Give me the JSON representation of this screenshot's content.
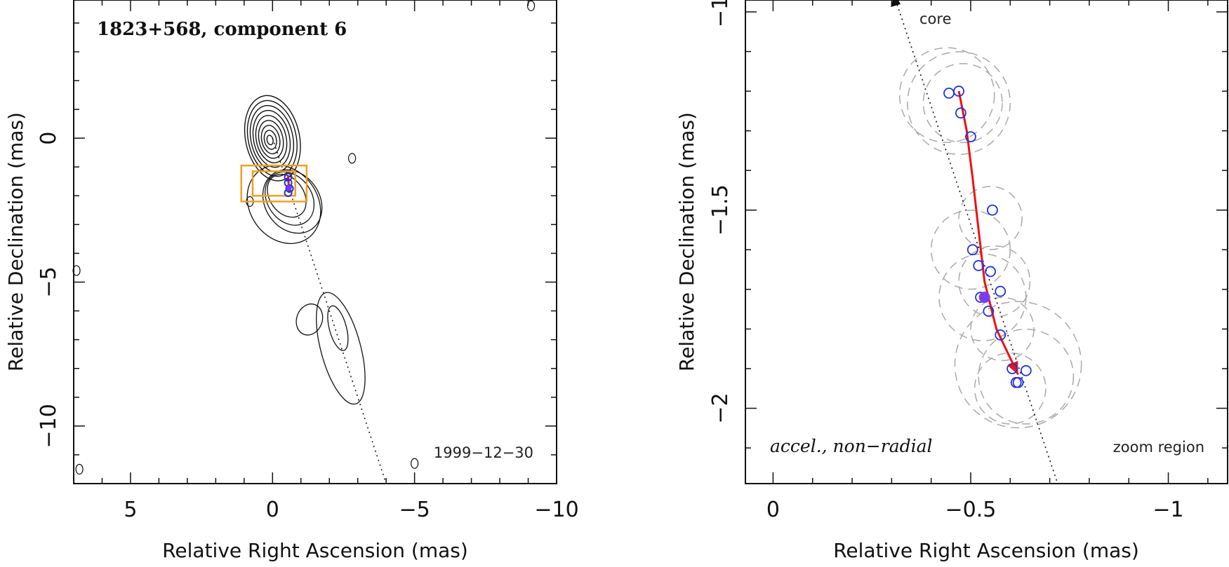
{
  "chart_data": [
    {
      "type": "contour",
      "panel": "left",
      "title": "1823+568, component 6",
      "date": "1999−12−30",
      "xlabel": "Relative Right Ascension (mas)",
      "ylabel": "Relative Declination (mas)",
      "xlim": [
        7,
        -10
      ],
      "ylim": [
        -12,
        4.8
      ],
      "xticks": [
        5,
        0,
        -5,
        -10
      ],
      "xtick_labels": [
        "5",
        "0",
        "−5",
        "−10"
      ],
      "yticks": [
        0,
        -5,
        -10
      ],
      "ytick_labels": [
        "0",
        "−5",
        "−10"
      ],
      "core_contours": {
        "center": [
          0,
          0
        ],
        "levels": 9,
        "max_radius": [
          0.95,
          1.5
        ]
      },
      "jet_direction_line": [
        [
          0,
          0
        ],
        [
          -4.0,
          -12
        ]
      ],
      "component_positions": [
        [
          -0.55,
          -1.35
        ],
        [
          -0.55,
          -1.55
        ],
        [
          -0.6,
          -1.75
        ],
        [
          -0.55,
          -1.9
        ]
      ],
      "component_color": "#2233dd",
      "zoom_boxes": [
        {
          "x": [
            1.1,
            -1.2
          ],
          "y": [
            -0.95,
            -2.2
          ]
        },
        {
          "x": [
            0.7,
            -0.8
          ],
          "y": [
            -1.15,
            -2.0
          ]
        }
      ],
      "zoom_box_color": "#f0a020"
    },
    {
      "type": "scatter",
      "panel": "right",
      "annotation_left": "accel., non−radial",
      "annotation_right": "zoom region",
      "core_label": "core",
      "xlabel": "Relative Right Ascension (mas)",
      "ylabel": "Relative Declination (mas)",
      "xlim": [
        0.07,
        -1.15
      ],
      "ylim": [
        -2.19,
        -0.97
      ],
      "xticks": [
        0,
        -0.5,
        -1
      ],
      "xtick_labels": [
        "0",
        "−0.5",
        "−1"
      ],
      "yticks": [
        -1,
        -1.5,
        -2
      ],
      "ytick_labels": [
        "−1",
        "−1.5",
        "−2"
      ],
      "points": [
        {
          "x": -0.445,
          "y": -1.205
        },
        {
          "x": -0.47,
          "y": -1.2
        },
        {
          "x": -0.475,
          "y": -1.255
        },
        {
          "x": -0.5,
          "y": -1.315
        },
        {
          "x": -0.555,
          "y": -1.5
        },
        {
          "x": -0.505,
          "y": -1.6
        },
        {
          "x": -0.52,
          "y": -1.64
        },
        {
          "x": -0.55,
          "y": -1.655
        },
        {
          "x": -0.575,
          "y": -1.705
        },
        {
          "x": -0.525,
          "y": -1.72
        },
        {
          "x": -0.545,
          "y": -1.755
        },
        {
          "x": -0.575,
          "y": -1.815
        },
        {
          "x": -0.605,
          "y": -1.9
        },
        {
          "x": -0.64,
          "y": -1.905
        },
        {
          "x": -0.615,
          "y": -1.935
        },
        {
          "x": -0.62,
          "y": -1.935
        }
      ],
      "filled_point": {
        "x": -0.535,
        "y": -1.72
      },
      "point_color": "#2233dd",
      "filled_color": "#7a3cf0",
      "track_color": "#ee1111",
      "track": [
        [
          -0.47,
          -1.2
        ],
        [
          -0.49,
          -1.3
        ],
        [
          -0.505,
          -1.42
        ],
        [
          -0.52,
          -1.55
        ],
        [
          -0.535,
          -1.68
        ],
        [
          -0.565,
          -1.8
        ],
        [
          -0.62,
          -1.915
        ]
      ],
      "uncertainty_circles": [
        {
          "x": -0.47,
          "y": -1.23,
          "r": 0.13
        },
        {
          "x": -0.48,
          "y": -1.23,
          "r": 0.1
        },
        {
          "x": -0.44,
          "y": -1.21,
          "r": 0.12
        },
        {
          "x": -0.55,
          "y": -1.52,
          "r": 0.08
        },
        {
          "x": -0.5,
          "y": -1.6,
          "r": 0.1
        },
        {
          "x": -0.56,
          "y": -1.68,
          "r": 0.09
        },
        {
          "x": -0.53,
          "y": -1.72,
          "r": 0.11
        },
        {
          "x": -0.58,
          "y": -1.8,
          "r": 0.08
        },
        {
          "x": -0.62,
          "y": -1.89,
          "r": 0.16
        },
        {
          "x": -0.64,
          "y": -1.92,
          "r": 0.12
        },
        {
          "x": -0.6,
          "y": -1.95,
          "r": 0.09
        }
      ],
      "jet_direction_line": [
        [
          -0.31,
          -0.97
        ],
        [
          -0.72,
          -2.19
        ]
      ]
    }
  ]
}
